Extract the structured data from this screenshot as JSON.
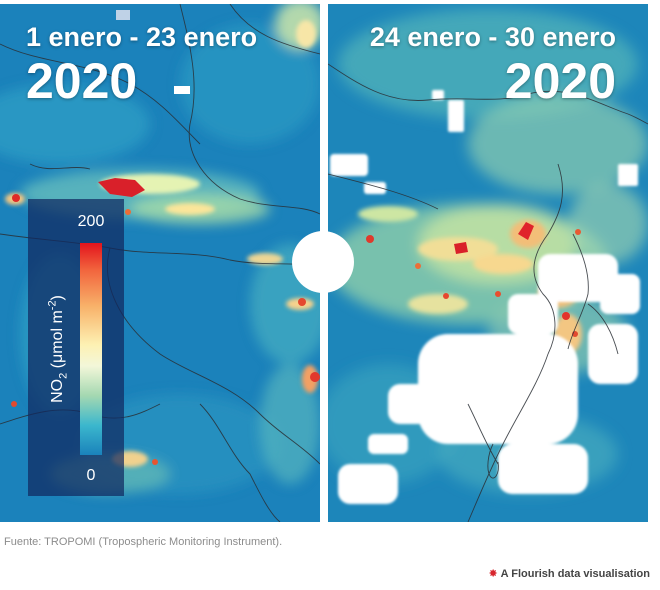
{
  "left_panel": {
    "period": "1 enero - 23 enero",
    "year": "2020"
  },
  "right_panel": {
    "period": "24 enero - 30 enero",
    "year": "2020"
  },
  "legend": {
    "max_label": "200",
    "min_label": "0",
    "title_prefix": "NO",
    "title_sub": "2",
    "title_mid": " (μmol m",
    "title_sup": "-2",
    "title_suffix": ")"
  },
  "source_text": "Fuente: TROPOMI (Tropospheric Monitoring Instrument).",
  "credit_text": "A Flourish data visualisation",
  "icons": {
    "slider_handle": "circle-handle-icon",
    "credit_logo": "flourish-logo-icon"
  },
  "colors": {
    "low": "#1a82bb",
    "mid": "#fdf1b3",
    "high": "#e3141d",
    "legend_bg": "#10285f"
  }
}
